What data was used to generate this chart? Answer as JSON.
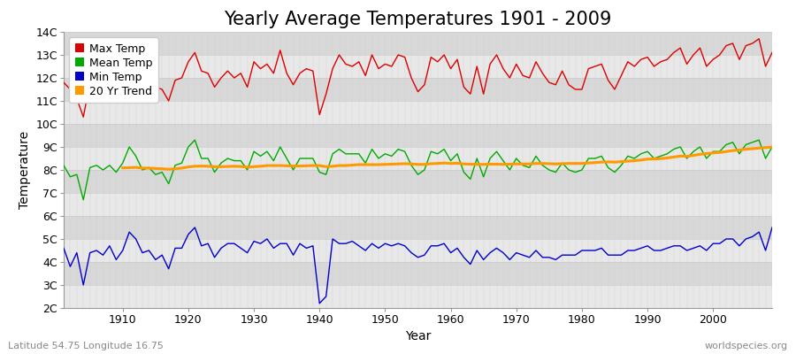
{
  "title": "Yearly Average Temperatures 1901 - 2009",
  "xlabel": "Year",
  "ylabel": "Temperature",
  "subtitle_lat": "Latitude 54.75 Longitude 16.75",
  "watermark": "worldspecies.org",
  "years": [
    1901,
    1902,
    1903,
    1904,
    1905,
    1906,
    1907,
    1908,
    1909,
    1910,
    1911,
    1912,
    1913,
    1914,
    1915,
    1916,
    1917,
    1918,
    1919,
    1920,
    1921,
    1922,
    1923,
    1924,
    1925,
    1926,
    1927,
    1928,
    1929,
    1930,
    1931,
    1932,
    1933,
    1934,
    1935,
    1936,
    1937,
    1938,
    1939,
    1940,
    1941,
    1942,
    1943,
    1944,
    1945,
    1946,
    1947,
    1948,
    1949,
    1950,
    1951,
    1952,
    1953,
    1954,
    1955,
    1956,
    1957,
    1958,
    1959,
    1960,
    1961,
    1962,
    1963,
    1964,
    1965,
    1966,
    1967,
    1968,
    1969,
    1970,
    1971,
    1972,
    1973,
    1974,
    1975,
    1976,
    1977,
    1978,
    1979,
    1980,
    1981,
    1982,
    1983,
    1984,
    1985,
    1986,
    1987,
    1988,
    1989,
    1990,
    1991,
    1992,
    1993,
    1994,
    1995,
    1996,
    1997,
    1998,
    1999,
    2000,
    2001,
    2002,
    2003,
    2004,
    2005,
    2006,
    2007,
    2008,
    2009
  ],
  "max_temp": [
    11.8,
    11.5,
    11.1,
    10.3,
    11.8,
    11.9,
    11.7,
    11.7,
    11.6,
    12.1,
    12.7,
    12.2,
    11.6,
    11.7,
    11.6,
    11.5,
    11.0,
    11.9,
    12.0,
    12.7,
    13.1,
    12.3,
    12.2,
    11.6,
    12.0,
    12.3,
    12.0,
    12.2,
    11.6,
    12.7,
    12.4,
    12.6,
    12.2,
    13.2,
    12.2,
    11.7,
    12.2,
    12.4,
    12.3,
    10.4,
    11.3,
    12.4,
    13.0,
    12.6,
    12.5,
    12.7,
    12.1,
    13.0,
    12.4,
    12.6,
    12.5,
    13.0,
    12.9,
    12.0,
    11.4,
    11.7,
    12.9,
    12.7,
    13.0,
    12.4,
    12.8,
    11.6,
    11.3,
    12.5,
    11.3,
    12.6,
    13.0,
    12.4,
    12.0,
    12.6,
    12.1,
    12.0,
    12.7,
    12.2,
    11.8,
    11.7,
    12.3,
    11.7,
    11.5,
    11.5,
    12.4,
    12.5,
    12.6,
    11.9,
    11.5,
    12.1,
    12.7,
    12.5,
    12.8,
    12.9,
    12.5,
    12.7,
    12.8,
    13.1,
    13.3,
    12.6,
    13.0,
    13.3,
    12.5,
    12.8,
    13.0,
    13.4,
    13.5,
    12.8,
    13.4,
    13.5,
    13.7,
    12.5,
    13.1
  ],
  "mean_temp": [
    8.2,
    7.7,
    7.8,
    6.7,
    8.1,
    8.2,
    8.0,
    8.2,
    7.9,
    8.3,
    9.0,
    8.6,
    8.0,
    8.1,
    7.8,
    7.9,
    7.4,
    8.2,
    8.3,
    9.0,
    9.3,
    8.5,
    8.5,
    7.9,
    8.3,
    8.5,
    8.4,
    8.4,
    8.0,
    8.8,
    8.6,
    8.8,
    8.4,
    9.0,
    8.5,
    8.0,
    8.5,
    8.5,
    8.5,
    7.9,
    7.8,
    8.7,
    8.9,
    8.7,
    8.7,
    8.7,
    8.3,
    8.9,
    8.5,
    8.7,
    8.6,
    8.9,
    8.8,
    8.2,
    7.8,
    8.0,
    8.8,
    8.7,
    8.9,
    8.4,
    8.7,
    7.9,
    7.6,
    8.5,
    7.7,
    8.5,
    8.8,
    8.4,
    8.0,
    8.5,
    8.2,
    8.1,
    8.6,
    8.2,
    8.0,
    7.9,
    8.3,
    8.0,
    7.9,
    8.0,
    8.5,
    8.5,
    8.6,
    8.1,
    7.9,
    8.2,
    8.6,
    8.5,
    8.7,
    8.8,
    8.5,
    8.6,
    8.7,
    8.9,
    9.0,
    8.5,
    8.8,
    9.0,
    8.5,
    8.8,
    8.8,
    9.1,
    9.2,
    8.7,
    9.1,
    9.2,
    9.3,
    8.5,
    9.0
  ],
  "min_temp": [
    4.6,
    3.8,
    4.4,
    3.0,
    4.4,
    4.5,
    4.3,
    4.7,
    4.1,
    4.5,
    5.3,
    5.0,
    4.4,
    4.5,
    4.1,
    4.3,
    3.7,
    4.6,
    4.6,
    5.2,
    5.5,
    4.7,
    4.8,
    4.2,
    4.6,
    4.8,
    4.8,
    4.6,
    4.4,
    4.9,
    4.8,
    5.0,
    4.6,
    4.8,
    4.8,
    4.3,
    4.8,
    4.6,
    4.7,
    2.2,
    2.5,
    5.0,
    4.8,
    4.8,
    4.9,
    4.7,
    4.5,
    4.8,
    4.6,
    4.8,
    4.7,
    4.8,
    4.7,
    4.4,
    4.2,
    4.3,
    4.7,
    4.7,
    4.8,
    4.4,
    4.6,
    4.2,
    3.9,
    4.5,
    4.1,
    4.4,
    4.6,
    4.4,
    4.1,
    4.4,
    4.3,
    4.2,
    4.5,
    4.2,
    4.2,
    4.1,
    4.3,
    4.3,
    4.3,
    4.5,
    4.5,
    4.5,
    4.6,
    4.3,
    4.3,
    4.3,
    4.5,
    4.5,
    4.6,
    4.7,
    4.5,
    4.5,
    4.6,
    4.7,
    4.7,
    4.5,
    4.6,
    4.7,
    4.5,
    4.8,
    4.8,
    5.0,
    5.0,
    4.7,
    5.0,
    5.1,
    5.3,
    4.5,
    5.5
  ],
  "trend_years": [
    1910,
    1911,
    1912,
    1913,
    1914,
    1915,
    1916,
    1917,
    1918,
    1919,
    1920,
    1921,
    1922,
    1923,
    1924,
    1925,
    1926,
    1927,
    1928,
    1929,
    1930,
    1931,
    1932,
    1933,
    1934,
    1935,
    1936,
    1937,
    1938,
    1939,
    1940,
    1941,
    1942,
    1943,
    1944,
    1945,
    1946,
    1947,
    1948,
    1949,
    1950,
    1951,
    1952,
    1953,
    1954,
    1955,
    1956,
    1957,
    1958,
    1959,
    1960,
    1961,
    1962,
    1963,
    1964,
    1965,
    1966,
    1967,
    1968,
    1969,
    1970,
    1971,
    1972,
    1973,
    1974,
    1975,
    1976,
    1977,
    1978,
    1979,
    1980,
    1981,
    1982,
    1983,
    1984,
    1985,
    1986,
    1987,
    1988,
    1989,
    1990,
    1991,
    1992,
    1993,
    1994,
    1995,
    1996,
    1997,
    1998,
    1999,
    2000,
    2001,
    2002,
    2003,
    2004,
    2005,
    2006,
    2007,
    2008,
    2009
  ],
  "trend_values": [
    8.09,
    8.1,
    8.11,
    8.08,
    8.08,
    8.06,
    8.05,
    8.03,
    8.05,
    8.08,
    8.13,
    8.16,
    8.17,
    8.16,
    8.14,
    8.14,
    8.15,
    8.16,
    8.15,
    8.12,
    8.14,
    8.16,
    8.19,
    8.19,
    8.19,
    8.18,
    8.17,
    8.17,
    8.18,
    8.19,
    8.19,
    8.14,
    8.16,
    8.19,
    8.19,
    8.21,
    8.23,
    8.23,
    8.23,
    8.23,
    8.24,
    8.25,
    8.26,
    8.27,
    8.26,
    8.24,
    8.24,
    8.27,
    8.28,
    8.3,
    8.28,
    8.29,
    8.26,
    8.25,
    8.24,
    8.24,
    8.25,
    8.25,
    8.24,
    8.25,
    8.26,
    8.26,
    8.26,
    8.28,
    8.28,
    8.27,
    8.26,
    8.27,
    8.28,
    8.28,
    8.28,
    8.3,
    8.32,
    8.34,
    8.35,
    8.34,
    8.36,
    8.38,
    8.4,
    8.43,
    8.47,
    8.48,
    8.49,
    8.52,
    8.56,
    8.6,
    8.59,
    8.63,
    8.68,
    8.71,
    8.74,
    8.76,
    8.8,
    8.84,
    8.87,
    8.9,
    8.92,
    8.95,
    8.97,
    8.99
  ],
  "max_color": "#dd0000",
  "mean_color": "#00aa00",
  "min_color": "#0000cc",
  "trend_color": "#ff9900",
  "bg_color": "#ffffff",
  "band_colors": [
    "#e8e8e8",
    "#d8d8d8"
  ],
  "grid_color": "#cccccc",
  "ylim": [
    2,
    14
  ],
  "yticks": [
    2,
    3,
    4,
    5,
    6,
    7,
    8,
    9,
    10,
    11,
    12,
    13,
    14
  ],
  "ytick_labels": [
    "2C",
    "3C",
    "4C",
    "5C",
    "6C",
    "7C",
    "8C",
    "9C",
    "10C",
    "11C",
    "12C",
    "13C",
    "14C"
  ],
  "xlim": [
    1901,
    2009
  ],
  "xticks": [
    1910,
    1920,
    1930,
    1940,
    1950,
    1960,
    1970,
    1980,
    1990,
    2000
  ],
  "title_fontsize": 15,
  "axis_label_fontsize": 10,
  "tick_fontsize": 9,
  "legend_fontsize": 9,
  "line_width": 1.0
}
